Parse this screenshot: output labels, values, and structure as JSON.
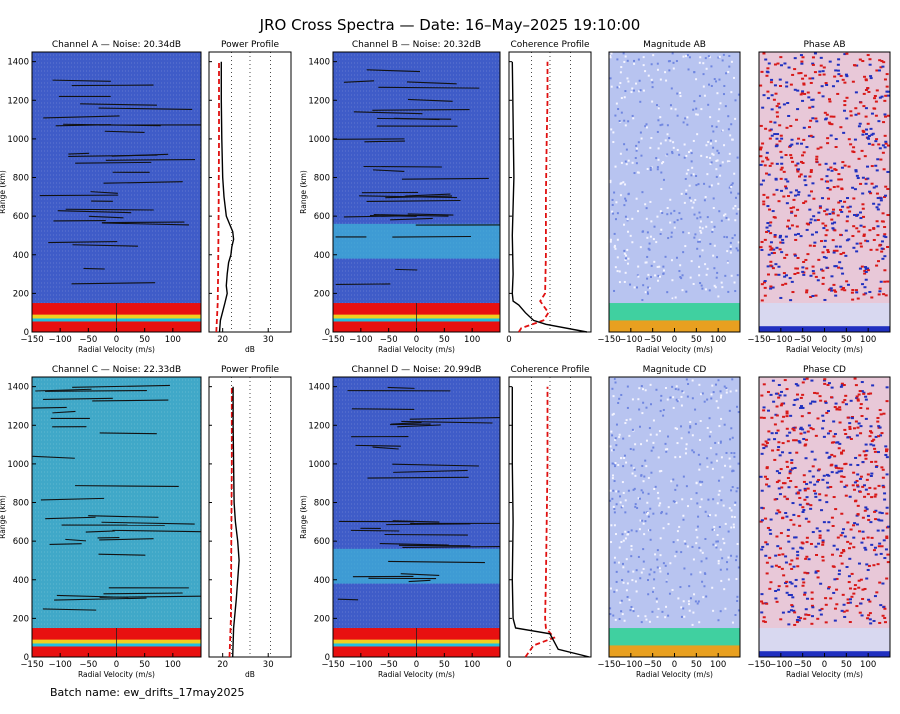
{
  "title": "JRO Cross Spectra — Date: 16–May–2025 19:10:00",
  "batch_name": "Batch name: ew_drifts_17may2025",
  "colors": {
    "spectra_bg": "#3f5cc8",
    "spectra_bg_c": "#40a8c8",
    "band_red": "#e81010",
    "mag_bg": "#b8c4f0",
    "phase_red": "#d81818",
    "phase_blue": "#2030c0"
  },
  "chart_data": [
    {
      "type": "heatmap",
      "title": "Channel A — Noise: 20.34dB",
      "xlabel": "Radial Velocity (m/s)",
      "ylabel": "Range (km)",
      "xlim": [
        -150,
        150
      ],
      "ylim": [
        0,
        1450
      ],
      "xticks": [
        "−150",
        "−100",
        "−50",
        "0",
        "50",
        "100"
      ],
      "yticks": [
        "0",
        "200",
        "400",
        "600",
        "800",
        "1000",
        "1200",
        "1400"
      ]
    },
    {
      "type": "line",
      "title": "Power Profile",
      "xlabel": "dB",
      "xticks": [
        "20",
        "30"
      ],
      "xlim": [
        17,
        35
      ],
      "series": [
        {
          "y": [
            0,
            60,
            150,
            200,
            240,
            300,
            360,
            400,
            440,
            480,
            520,
            560,
            600,
            700,
            800,
            1000,
            1200,
            1400
          ],
          "x": [
            19.3,
            19.5,
            20.5,
            21.0,
            20.8,
            21.0,
            21.3,
            21.8,
            22.0,
            22.4,
            22.2,
            21.5,
            20.8,
            20.3,
            20.0,
            19.8,
            19.7,
            19.7
          ]
        },
        {
          "y": [
            0,
            150,
            300,
            600,
            1000,
            1400
          ],
          "x": [
            18.6,
            18.9,
            19.0,
            19.1,
            19.2,
            19.2
          ]
        }
      ]
    },
    {
      "type": "heatmap",
      "title": "Channel B — Noise: 20.32dB",
      "xlabel": "Radial Velocity (m/s)",
      "ylabel": "Range (km)",
      "xlim": [
        -150,
        150
      ],
      "ylim": [
        0,
        1450
      ],
      "xticks": [
        "−150",
        "−100",
        "−50",
        "0",
        "50",
        "100"
      ],
      "yticks": [
        "0",
        "200",
        "400",
        "600",
        "800",
        "1000",
        "1200",
        "1400"
      ]
    },
    {
      "type": "line",
      "title": "Coherence Profile",
      "xticks": [
        "0"
      ],
      "xlim": [
        0,
        1
      ],
      "series": [
        {
          "y": [
            0,
            40,
            60,
            100,
            140,
            160,
            200,
            300,
            500,
            800,
            1100,
            1400
          ],
          "x": [
            0.95,
            0.45,
            0.3,
            0.2,
            0.12,
            0.05,
            0.04,
            0.05,
            0.04,
            0.06,
            0.05,
            0.04
          ]
        },
        {
          "y": [
            0,
            20,
            60,
            100,
            160,
            200,
            400,
            700,
            1000,
            1200,
            1400
          ],
          "x": [
            0.12,
            0.15,
            0.42,
            0.48,
            0.38,
            0.44,
            0.45,
            0.45,
            0.46,
            0.47,
            0.47
          ]
        }
      ]
    },
    {
      "type": "heatmap",
      "title": "Magnitude AB",
      "xlabel": "Radial Velocity (m/s)",
      "xlim": [
        -150,
        150
      ],
      "ylim": [
        0,
        1450
      ],
      "xticks": [
        "−150",
        "−100",
        "−50",
        "0",
        "50",
        "100"
      ]
    },
    {
      "type": "heatmap",
      "title": "Phase AB",
      "xlabel": "Radial Velocity (m/s)",
      "xlim": [
        -150,
        150
      ],
      "ylim": [
        0,
        1450
      ],
      "xticks": [
        "−150",
        "−100",
        "−50",
        "0",
        "50",
        "100"
      ]
    },
    {
      "type": "heatmap",
      "title": "Channel C — Noise: 22.33dB",
      "xlabel": "Radial Velocity (m/s)",
      "ylabel": "Range (km)",
      "xlim": [
        -150,
        150
      ],
      "ylim": [
        0,
        1450
      ],
      "xticks": [
        "−150",
        "−100",
        "−50",
        "0",
        "50",
        "100"
      ],
      "yticks": [
        "0",
        "200",
        "400",
        "600",
        "800",
        "1000",
        "1200",
        "1400"
      ]
    },
    {
      "type": "line",
      "title": "Power Profile",
      "xlabel": "dB",
      "xticks": [
        "20",
        "30"
      ],
      "xlim": [
        17,
        35
      ],
      "series": [
        {
          "y": [
            0,
            150,
            200,
            300,
            400,
            500,
            600,
            700,
            800,
            1000,
            1200,
            1400
          ],
          "x": [
            22.2,
            22.4,
            22.6,
            23.0,
            23.3,
            23.6,
            23.3,
            22.8,
            22.5,
            22.4,
            22.3,
            22.3
          ]
        },
        {
          "y": [
            0,
            200,
            600,
            1000,
            1400
          ],
          "x": [
            21.5,
            21.8,
            21.9,
            22.0,
            22.0
          ]
        }
      ]
    },
    {
      "type": "heatmap",
      "title": "Channel D — Noise: 20.99dB",
      "xlabel": "Radial Velocity (m/s)",
      "ylabel": "Range (km)",
      "xlim": [
        -150,
        150
      ],
      "ylim": [
        0,
        1450
      ],
      "xticks": [
        "−150",
        "−100",
        "−50",
        "0",
        "50",
        "100"
      ],
      "yticks": [
        "0",
        "200",
        "400",
        "600",
        "800",
        "1000",
        "1200",
        "1400"
      ]
    },
    {
      "type": "line",
      "title": "Coherence Profile",
      "xticks": [
        "0"
      ],
      "xlim": [
        0,
        1
      ],
      "series": [
        {
          "y": [
            0,
            40,
            80,
            120,
            150,
            200,
            400,
            700,
            1000,
            1400
          ],
          "x": [
            0.98,
            0.6,
            0.55,
            0.5,
            0.08,
            0.05,
            0.04,
            0.05,
            0.04,
            0.04
          ]
        },
        {
          "y": [
            0,
            60,
            100,
            150,
            200,
            400,
            700,
            1000,
            1300,
            1400
          ],
          "x": [
            0.2,
            0.3,
            0.55,
            0.45,
            0.44,
            0.45,
            0.46,
            0.47,
            0.47,
            0.47
          ]
        }
      ]
    },
    {
      "type": "heatmap",
      "title": "Magnitude CD",
      "xlabel": "Radial Velocity (m/s)",
      "xlim": [
        -150,
        150
      ],
      "ylim": [
        0,
        1450
      ],
      "xticks": [
        "−150",
        "−100",
        "−50",
        "0",
        "50",
        "100"
      ]
    },
    {
      "type": "heatmap",
      "title": "Phase CD",
      "xlabel": "Radial Velocity (m/s)",
      "xlim": [
        -150,
        150
      ],
      "ylim": [
        0,
        1450
      ],
      "xticks": [
        "−150",
        "−100",
        "−50",
        "0",
        "50",
        "100"
      ]
    }
  ]
}
